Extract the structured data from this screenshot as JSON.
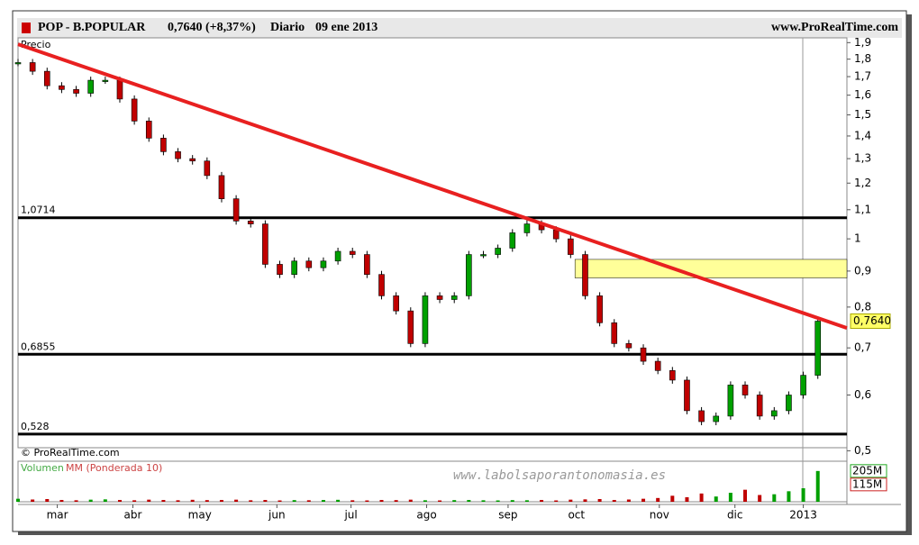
{
  "chart_data": {
    "type": "candlestick",
    "title": "POP - B.POPULAR",
    "price": "0,7640 (+8,37%)",
    "period": "Diario",
    "date": "09 ene 2013",
    "source": "www.ProRealTime.com",
    "price_label": "Precio",
    "copyright": "© ProRealTime.com",
    "watermark": "www.labolsaporantonomasia.es",
    "log_scale": true,
    "up_color": "#00a000",
    "down_color": "#c00000",
    "x": [
      0,
      1,
      2,
      3,
      4,
      5,
      6,
      7,
      8,
      9,
      10,
      11,
      12,
      13,
      14,
      15,
      16,
      17,
      18,
      19,
      20,
      21,
      22,
      23,
      24,
      25,
      26,
      27,
      28,
      29,
      30,
      31,
      32,
      33,
      34,
      35,
      36,
      37,
      38,
      39,
      40,
      41,
      42,
      43,
      44,
      45,
      46,
      47,
      48,
      49,
      50,
      51,
      52,
      53,
      54,
      55
    ],
    "values": [
      1.78,
      1.73,
      1.65,
      1.63,
      1.61,
      1.68,
      1.68,
      1.58,
      1.47,
      1.39,
      1.33,
      1.3,
      1.29,
      1.23,
      1.14,
      1.06,
      1.05,
      0.92,
      0.89,
      0.93,
      0.91,
      0.93,
      0.96,
      0.95,
      0.89,
      0.83,
      0.79,
      0.71,
      0.83,
      0.82,
      0.83,
      0.95,
      0.95,
      0.97,
      1.02,
      1.05,
      1.03,
      1.0,
      0.95,
      0.83,
      0.76,
      0.71,
      0.7,
      0.67,
      0.65,
      0.63,
      0.57,
      0.55,
      0.56,
      0.62,
      0.6,
      0.56,
      0.57,
      0.6,
      0.64,
      0.764
    ],
    "xlim": [
      0,
      57
    ],
    "xticks": [
      {
        "value": 2.7,
        "label": "mar"
      },
      {
        "value": 7.9,
        "label": "abr"
      },
      {
        "value": 12.5,
        "label": "may"
      },
      {
        "value": 17.8,
        "label": "jun"
      },
      {
        "value": 22.9,
        "label": "jul"
      },
      {
        "value": 28.1,
        "label": "ago"
      },
      {
        "value": 33.7,
        "label": "sep"
      },
      {
        "value": 38.4,
        "label": "oct"
      },
      {
        "value": 44.1,
        "label": "nov"
      },
      {
        "value": 49.3,
        "label": "dic"
      },
      {
        "value": 54.0,
        "label": "2013"
      }
    ],
    "ylim": [
      0.505,
      1.93
    ],
    "yticks": [
      {
        "value": 0.5,
        "label": "0,5"
      },
      {
        "value": 0.6,
        "label": "0,6"
      },
      {
        "value": 0.7,
        "label": "0,7"
      },
      {
        "value": 0.8,
        "label": "0,8"
      },
      {
        "value": 0.9,
        "label": "0,9"
      },
      1,
      {
        "value": 1.1,
        "label": "1,1"
      },
      {
        "value": 1.2,
        "label": "1,2"
      },
      {
        "value": 1.3,
        "label": "1,3"
      },
      {
        "value": 1.4,
        "label": "1,4"
      },
      {
        "value": 1.5,
        "label": "1,5"
      },
      {
        "value": 1.6,
        "label": "1,6"
      },
      {
        "value": 1.7,
        "label": "1,7"
      },
      {
        "value": 1.8,
        "label": "1,8"
      },
      {
        "value": 1.9,
        "label": "1,9"
      }
    ],
    "last_price": {
      "value": 0.764,
      "label": "0,7640"
    },
    "levels": [
      {
        "value": 1.0714,
        "label": "1,0714"
      },
      {
        "value": 0.6855,
        "label": "0,6855"
      },
      {
        "value": 0.528,
        "label": "0,528"
      }
    ],
    "trend_line": {
      "color": "#e82020",
      "values": [
        1.89,
        0.747
      ]
    },
    "zone": {
      "color": "#ffff99",
      "values": [
        0.88,
        0.935
      ],
      "x": 38.3
    },
    "volume": {
      "name": "Volumen",
      "ma_name": "MM (Ponderada 10)",
      "ylim": [
        0,
        270
      ],
      "values": [
        20,
        15,
        18,
        12,
        10,
        14,
        16,
        12,
        10,
        14,
        12,
        10,
        13,
        11,
        12,
        14,
        10,
        12,
        9,
        11,
        10,
        12,
        13,
        10,
        9,
        12,
        11,
        14,
        10,
        9,
        11,
        12,
        10,
        9,
        11,
        10,
        12,
        9,
        14,
        16,
        18,
        12,
        15,
        20,
        25,
        40,
        30,
        55,
        35,
        60,
        80,
        45,
        50,
        70,
        90,
        205
      ],
      "last": {
        "value": 205,
        "label": "205M"
      },
      "ma": {
        "value": 115,
        "label": "115M"
      }
    }
  }
}
